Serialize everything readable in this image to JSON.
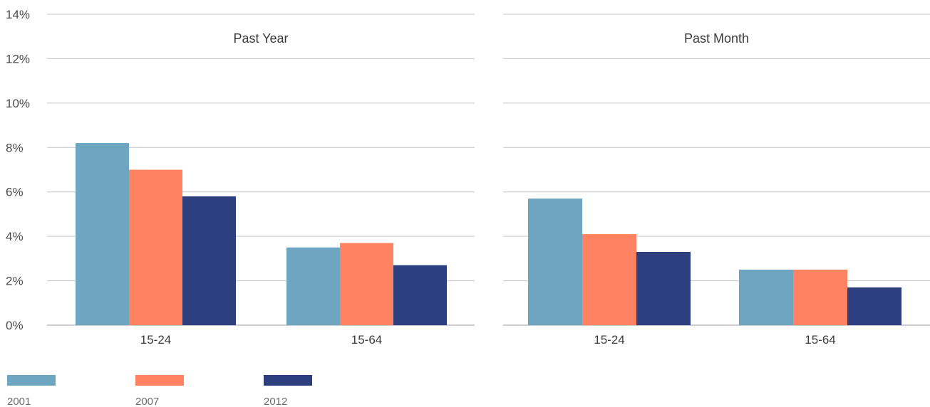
{
  "chart_data": [
    {
      "type": "bar",
      "title": "Past Year",
      "categories": [
        "15-24",
        "15-64"
      ],
      "series": [
        {
          "name": "2001",
          "color": "#6ea6c2",
          "values": [
            8.2,
            3.5
          ]
        },
        {
          "name": "2007",
          "color": "#ff8362",
          "values": [
            7.0,
            3.7
          ]
        },
        {
          "name": "2012",
          "color": "#2e3f80",
          "values": [
            5.8,
            2.7
          ]
        }
      ],
      "ylim": [
        0,
        14
      ],
      "yticks": [
        "0%",
        "2%",
        "4%",
        "6%",
        "8%",
        "10%",
        "12%",
        "14%"
      ],
      "grid": true
    },
    {
      "type": "bar",
      "title": "Past Month",
      "categories": [
        "15-24",
        "15-64"
      ],
      "series": [
        {
          "name": "2001",
          "color": "#6ea6c2",
          "values": [
            5.7,
            2.5
          ]
        },
        {
          "name": "2007",
          "color": "#ff8362",
          "values": [
            4.1,
            2.5
          ]
        },
        {
          "name": "2012",
          "color": "#2e3f80",
          "values": [
            3.3,
            1.7
          ]
        }
      ],
      "ylim": [
        0,
        14
      ],
      "grid": true
    }
  ],
  "legend": {
    "position": "bottom-left",
    "items": [
      {
        "label": "2001",
        "color": "#6ea6c2"
      },
      {
        "label": "2007",
        "color": "#ff8362"
      },
      {
        "label": "2012",
        "color": "#2e3f80"
      }
    ]
  }
}
